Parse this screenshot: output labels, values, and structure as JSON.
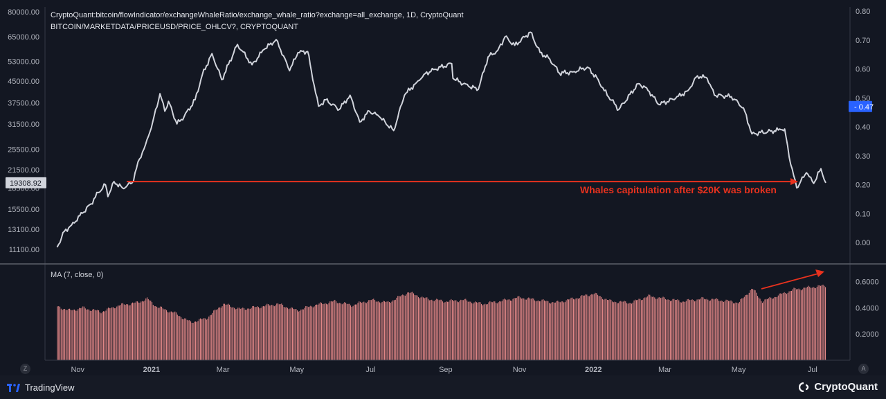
{
  "header": {
    "line1": "CryptoQuant:bitcoin/flowIndicator/exchangeWhaleRatio/exchange_whale_ratio?exchange=all_exchange, 1D, CryptoQuant",
    "line2": "BITCOIN/MARKETDATA/PRICEUSD/PRICE_OHLCV?, CRYPTOQUANT"
  },
  "annotation": "Whales capitulation after $20K was broken",
  "colors": {
    "price_line": "#d1d4dc",
    "ratio_bar": "#e08686",
    "annotation": "#e8321e",
    "ratio_badge": "#2962ff"
  },
  "footer": {
    "left_brand": "TradingView",
    "right_brand": "CryptoQuant",
    "left_button": "Z",
    "right_button": "A"
  },
  "chart_data": [
    {
      "type": "line",
      "name": "BTC price (USD)",
      "y_scale": "log",
      "left_axis_ticks": [
        "80000.00",
        "65000.00",
        "53000.00",
        "45000.00",
        "37500.00",
        "31500.00",
        "25500.00",
        "21500.00",
        "18500.00",
        "15500.00",
        "13100.00",
        "11100.00"
      ],
      "left_axis_values": [
        80000,
        65000,
        53000,
        45000,
        37500,
        31500,
        25500,
        21500,
        18500,
        15500,
        13100,
        11100
      ],
      "right_axis_ticks": [
        "0.80",
        "0.70",
        "0.60",
        "0.50",
        "0.40",
        "0.30",
        "0.20",
        "0.10",
        "0.00"
      ],
      "right_axis_values": [
        0.8,
        0.7,
        0.6,
        0.5,
        0.4,
        0.3,
        0.2,
        0.1,
        0.0
      ],
      "current_price_label": "19308.92",
      "current_ratio_label": "0.47",
      "x_ticks": [
        "Nov",
        "2021",
        "Mar",
        "May",
        "Jul",
        "Sep",
        "Nov",
        "2022",
        "Mar",
        "May",
        "Jul"
      ],
      "points": [
        [
          "2020-10-15",
          11300
        ],
        [
          "2020-10-21",
          12900
        ],
        [
          "2020-10-27",
          13600
        ],
        [
          "2020-11-05",
          15000
        ],
        [
          "2020-11-12",
          16200
        ],
        [
          "2020-11-18",
          17800
        ],
        [
          "2020-11-24",
          19000
        ],
        [
          "2020-11-26",
          17200
        ],
        [
          "2020-12-01",
          19500
        ],
        [
          "2020-12-08",
          18500
        ],
        [
          "2020-12-16",
          19300
        ],
        [
          "2020-12-22",
          23500
        ],
        [
          "2020-12-27",
          26500
        ],
        [
          "2021-01-02",
          32000
        ],
        [
          "2021-01-08",
          40500
        ],
        [
          "2021-01-12",
          35000
        ],
        [
          "2021-01-15",
          38000
        ],
        [
          "2021-01-22",
          31500
        ],
        [
          "2021-01-28",
          33500
        ],
        [
          "2021-02-06",
          38500
        ],
        [
          "2021-02-12",
          47500
        ],
        [
          "2021-02-20",
          56500
        ],
        [
          "2021-02-28",
          45500
        ],
        [
          "2021-03-10",
          57000
        ],
        [
          "2021-03-13",
          61000
        ],
        [
          "2021-03-25",
          51500
        ],
        [
          "2021-04-04",
          58500
        ],
        [
          "2021-04-14",
          63500
        ],
        [
          "2021-04-20",
          55500
        ],
        [
          "2021-04-25",
          49000
        ],
        [
          "2021-05-02",
          57000
        ],
        [
          "2021-05-10",
          57500
        ],
        [
          "2021-05-13",
          49000
        ],
        [
          "2021-05-19",
          36500
        ],
        [
          "2021-05-25",
          38500
        ],
        [
          "2021-06-05",
          35500
        ],
        [
          "2021-06-14",
          40000
        ],
        [
          "2021-06-22",
          32000
        ],
        [
          "2021-06-30",
          35000
        ],
        [
          "2021-07-08",
          33500
        ],
        [
          "2021-07-20",
          29800
        ],
        [
          "2021-07-29",
          40000
        ],
        [
          "2021-08-08",
          44500
        ],
        [
          "2021-08-14",
          47500
        ],
        [
          "2021-08-22",
          49500
        ],
        [
          "2021-09-06",
          52000
        ],
        [
          "2021-09-07",
          46000
        ],
        [
          "2021-09-20",
          43000
        ],
        [
          "2021-09-28",
          42000
        ],
        [
          "2021-10-06",
          55000
        ],
        [
          "2021-10-14",
          58000
        ],
        [
          "2021-10-20",
          65000
        ],
        [
          "2021-10-28",
          60500
        ],
        [
          "2021-11-10",
          67500
        ],
        [
          "2021-11-18",
          57000
        ],
        [
          "2021-11-26",
          54000
        ],
        [
          "2021-12-04",
          48000
        ],
        [
          "2021-12-15",
          48500
        ],
        [
          "2021-12-27",
          50500
        ],
        [
          "2022-01-05",
          45500
        ],
        [
          "2022-01-10",
          41500
        ],
        [
          "2022-01-22",
          35500
        ],
        [
          "2022-02-07",
          44000
        ],
        [
          "2022-02-14",
          42500
        ],
        [
          "2022-02-24",
          37000
        ],
        [
          "2022-03-10",
          39000
        ],
        [
          "2022-03-20",
          41500
        ],
        [
          "2022-03-28",
          47000
        ],
        [
          "2022-04-05",
          46000
        ],
        [
          "2022-04-11",
          40000
        ],
        [
          "2022-04-25",
          39500
        ],
        [
          "2022-05-05",
          36000
        ],
        [
          "2022-05-12",
          29000
        ],
        [
          "2022-05-25",
          29500
        ],
        [
          "2022-06-05",
          30000
        ],
        [
          "2022-06-08",
          30200
        ],
        [
          "2022-06-13",
          22500
        ],
        [
          "2022-06-18",
          18500
        ],
        [
          "2022-06-26",
          21000
        ],
        [
          "2022-07-02",
          19200
        ],
        [
          "2022-07-08",
          21700
        ],
        [
          "2022-07-12",
          19300
        ]
      ]
    },
    {
      "type": "bar",
      "name": "MA (7, close, 0)",
      "label": "MA (7, close, 0)",
      "y_axis_ticks": [
        "0.6000",
        "0.4000",
        "0.2000"
      ],
      "y_axis_values": [
        0.6,
        0.4,
        0.2
      ],
      "ylim": [
        0.0,
        0.72
      ],
      "points": [
        [
          "2020-10-15",
          0.41
        ],
        [
          "2020-10-25",
          0.38
        ],
        [
          "2020-11-05",
          0.4
        ],
        [
          "2020-11-20",
          0.37
        ],
        [
          "2020-12-05",
          0.42
        ],
        [
          "2020-12-20",
          0.44
        ],
        [
          "2020-12-28",
          0.47
        ],
        [
          "2021-01-05",
          0.41
        ],
        [
          "2021-01-20",
          0.36
        ],
        [
          "2021-02-02",
          0.29
        ],
        [
          "2021-02-15",
          0.32
        ],
        [
          "2021-03-01",
          0.43
        ],
        [
          "2021-03-15",
          0.39
        ],
        [
          "2021-04-01",
          0.41
        ],
        [
          "2021-04-15",
          0.43
        ],
        [
          "2021-05-01",
          0.38
        ],
        [
          "2021-05-15",
          0.42
        ],
        [
          "2021-06-01",
          0.45
        ],
        [
          "2021-06-15",
          0.42
        ],
        [
          "2021-07-01",
          0.46
        ],
        [
          "2021-07-15",
          0.44
        ],
        [
          "2021-08-01",
          0.52
        ],
        [
          "2021-08-15",
          0.47
        ],
        [
          "2021-09-01",
          0.45
        ],
        [
          "2021-09-15",
          0.46
        ],
        [
          "2021-10-01",
          0.43
        ],
        [
          "2021-10-15",
          0.45
        ],
        [
          "2021-11-01",
          0.48
        ],
        [
          "2021-11-15",
          0.46
        ],
        [
          "2021-12-01",
          0.44
        ],
        [
          "2021-12-15",
          0.47
        ],
        [
          "2022-01-01",
          0.51
        ],
        [
          "2022-01-15",
          0.45
        ],
        [
          "2022-02-01",
          0.44
        ],
        [
          "2022-02-15",
          0.49
        ],
        [
          "2022-03-01",
          0.47
        ],
        [
          "2022-03-15",
          0.45
        ],
        [
          "2022-04-01",
          0.47
        ],
        [
          "2022-04-15",
          0.46
        ],
        [
          "2022-05-01",
          0.44
        ],
        [
          "2022-05-12",
          0.55
        ],
        [
          "2022-05-20",
          0.45
        ],
        [
          "2022-06-01",
          0.49
        ],
        [
          "2022-06-15",
          0.54
        ],
        [
          "2022-07-01",
          0.56
        ],
        [
          "2022-07-12",
          0.57
        ]
      ]
    }
  ]
}
